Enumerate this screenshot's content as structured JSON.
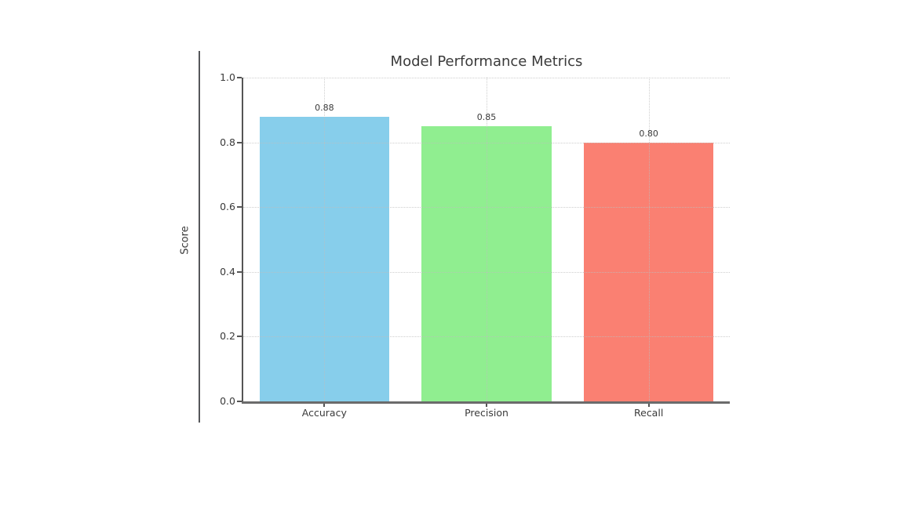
{
  "page": {
    "background_color": "#ffffff",
    "frame_border_color": "#55575a"
  },
  "style": {
    "title_color": "#3a3a3a",
    "tick_label_color": "#3a3a3a",
    "spine_color": "#555555",
    "grid_color": "#bebebe",
    "value_label_color": "#3a3a3a"
  },
  "chart_data": {
    "type": "bar",
    "title": "Model Performance Metrics",
    "xlabel": "",
    "ylabel": "Score",
    "categories": [
      "Accuracy",
      "Precision",
      "Recall"
    ],
    "values": [
      0.88,
      0.85,
      0.8
    ],
    "bar_labels": [
      "0.88",
      "0.85",
      "0.80"
    ],
    "bar_colors": [
      "#87CEEB",
      "#90EE90",
      "#FA8072"
    ],
    "ylim": [
      0.0,
      1.0
    ],
    "yticks": [
      0.0,
      0.2,
      0.4,
      0.6,
      0.8,
      1.0
    ],
    "ytick_labels": [
      "0.0",
      "0.2",
      "0.4",
      "0.6",
      "0.8",
      "1.0"
    ],
    "bar_width_fraction": 0.8,
    "grid": "dotted horizontal lines at y ticks and vertical lines at bar centers, drawn above bars",
    "legend": "none"
  }
}
